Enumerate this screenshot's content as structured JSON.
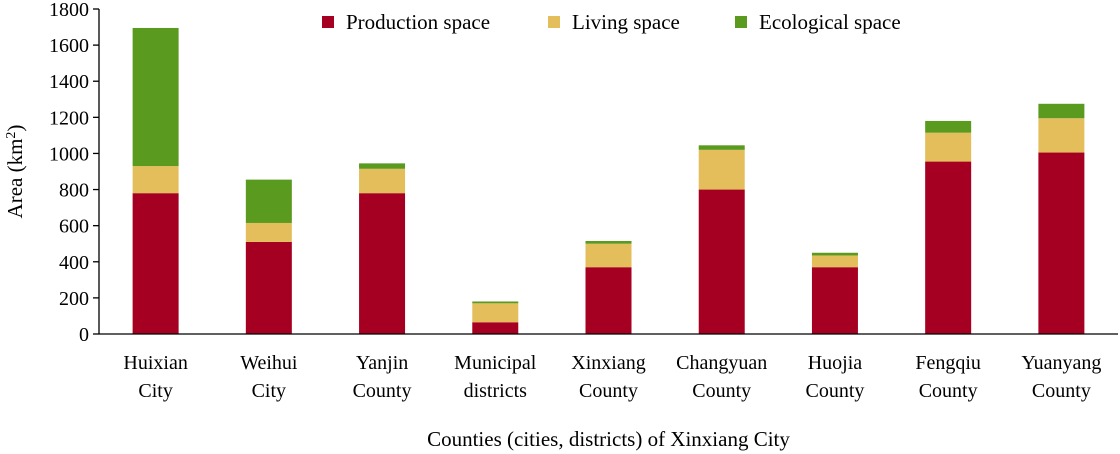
{
  "chart_data": {
    "type": "bar",
    "stacked": true,
    "title": "",
    "xlabel": "Counties (cities, districts) of Xinxiang City",
    "ylabel_main": "Area (km",
    "ylabel_sup": "2",
    "ylabel_close": ")",
    "ylim": [
      0,
      1800
    ],
    "yticks": [
      0,
      200,
      400,
      600,
      800,
      1000,
      1200,
      1400,
      1600,
      1800
    ],
    "grid": false,
    "legend_position": "top",
    "categories": [
      [
        "Huixian",
        "City"
      ],
      [
        "Weihui",
        "City"
      ],
      [
        "Yanjin",
        "County"
      ],
      [
        "Municipal",
        "districts"
      ],
      [
        "Xinxiang",
        "County"
      ],
      [
        "Changyuan",
        "County"
      ],
      [
        "Huojia",
        "County"
      ],
      [
        "Fengqiu",
        "County"
      ],
      [
        "Yuanyang",
        "County"
      ]
    ],
    "series": [
      {
        "name": "Production space",
        "color": "#A50021",
        "values": [
          780,
          510,
          780,
          65,
          370,
          800,
          370,
          955,
          1005
        ]
      },
      {
        "name": "Living space",
        "color": "#E3BE5A",
        "values": [
          150,
          105,
          135,
          105,
          130,
          220,
          65,
          160,
          190
        ]
      },
      {
        "name": "Ecological space",
        "color": "#5A9A1F",
        "values": [
          765,
          240,
          30,
          10,
          15,
          25,
          15,
          65,
          80
        ]
      }
    ]
  }
}
